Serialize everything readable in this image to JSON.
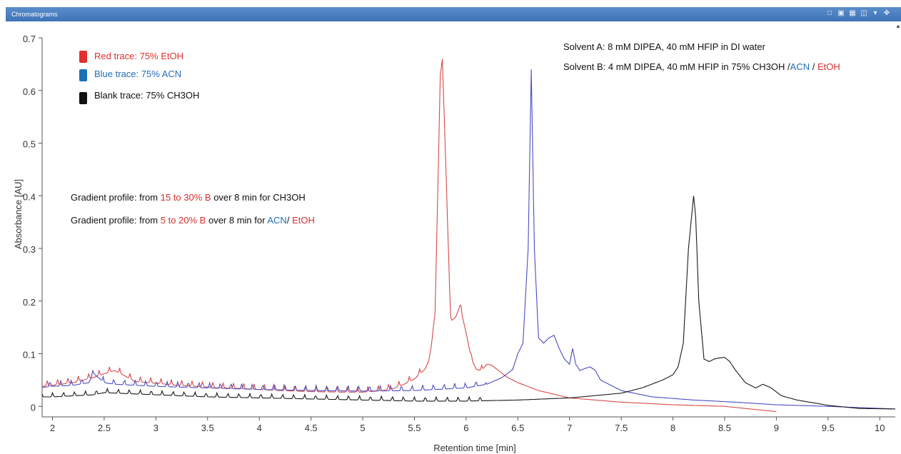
{
  "window": {
    "title": "Chromatograms",
    "toolbar_icons": [
      "copy-icon",
      "export-icon",
      "table-icon",
      "layers-icon",
      "dropdown-icon",
      "move-icon"
    ]
  },
  "colors": {
    "red": "#d84848",
    "blue": "#4c4cc4",
    "black": "#1a1a1a",
    "label_red": "#d83030",
    "label_blue": "#1f6fb5"
  },
  "legend": [
    {
      "label": "Red trace: 75% EtOH",
      "color": "#e03030"
    },
    {
      "label": "Blue trace: 75% ACN",
      "color": "#1f6fb5"
    },
    {
      "label": "Blank trace: 75% CH3OH",
      "color": "#111111"
    }
  ],
  "annotations": {
    "solvent_a": "Solvent A: 8 mM DIPEA, 40 mM HFIP in DI water",
    "solvent_b_prefix": "Solvent B: 4 mM DIPEA, 40 mM HFIP in 75% CH3OH",
    "solvent_b_acn": "ACN",
    "solvent_b_etoh": "EtOH",
    "gradient1_prefix": "Gradient profile: from",
    "gradient1_range": "15 to 30% B",
    "gradient1_suffix": "over 8 min for CH3OH",
    "gradient2_prefix": "Gradient profile: from",
    "gradient2_range": "5 to 20% B",
    "gradient2_suffix": "over 8 min for",
    "gradient2_acn": "ACN",
    "gradient2_etoh": "EtOH",
    "separator": "/"
  },
  "chart_data": {
    "type": "line",
    "xlabel": "Retention time [min]",
    "ylabel": "Absorbance [AU]",
    "xlim": [
      1.9,
      10.15
    ],
    "ylim": [
      -0.02,
      0.7
    ],
    "xticks": [
      2,
      2.5,
      3,
      3.5,
      4,
      4.5,
      5,
      5.5,
      6,
      6.5,
      7,
      7.5,
      8,
      8.5,
      9,
      9.5,
      10
    ],
    "xtick_labels": [
      "2",
      "2.5",
      "3",
      "3.5",
      "4",
      "4.5",
      "5",
      "5.5",
      "6",
      "6.5",
      "7",
      "7.5",
      "8",
      "8.5",
      "9",
      "9.5",
      "10"
    ],
    "yticks": [
      0,
      0.1,
      0.2,
      0.3,
      0.4,
      0.5,
      0.6,
      0.7
    ],
    "ytick_labels": [
      "0",
      "0.1",
      "0.2",
      "0.3",
      "0.4",
      "0.5",
      "0.6",
      "0.7"
    ],
    "series": [
      {
        "name": "Red trace: 75% EtOH",
        "color": "#d84848",
        "x": [
          1.9,
          2.0,
          2.2,
          2.4,
          2.5,
          2.6,
          2.7,
          2.8,
          3.0,
          3.2,
          3.4,
          3.6,
          3.8,
          4.0,
          4.2,
          4.5,
          4.8,
          5.0,
          5.2,
          5.3,
          5.4,
          5.5,
          5.6,
          5.65,
          5.7,
          5.75,
          5.77,
          5.8,
          5.85,
          5.9,
          5.94,
          6.0,
          6.05,
          6.1,
          6.15,
          6.2,
          6.25,
          6.3,
          6.4,
          6.5,
          6.7,
          7.0,
          7.5,
          8.0,
          8.5,
          8.9,
          9.0
        ],
        "y": [
          0.038,
          0.04,
          0.045,
          0.055,
          0.062,
          0.068,
          0.058,
          0.047,
          0.044,
          0.04,
          0.038,
          0.035,
          0.034,
          0.032,
          0.03,
          0.028,
          0.027,
          0.027,
          0.03,
          0.034,
          0.042,
          0.052,
          0.07,
          0.09,
          0.18,
          0.62,
          0.66,
          0.48,
          0.16,
          0.17,
          0.19,
          0.14,
          0.09,
          0.07,
          0.068,
          0.08,
          0.078,
          0.07,
          0.055,
          0.045,
          0.03,
          0.016,
          0.008,
          0.003,
          0.0,
          -0.008,
          -0.01
        ]
      },
      {
        "name": "Blue trace: 75% ACN",
        "color": "#4c4cc4",
        "x": [
          1.9,
          2.0,
          2.2,
          2.35,
          2.4,
          2.5,
          2.6,
          2.8,
          3.0,
          3.5,
          4.0,
          4.5,
          5.0,
          5.5,
          6.0,
          6.2,
          6.35,
          6.45,
          6.5,
          6.55,
          6.6,
          6.63,
          6.66,
          6.7,
          6.75,
          6.8,
          6.85,
          6.9,
          6.95,
          7.0,
          7.03,
          7.06,
          7.1,
          7.15,
          7.2,
          7.25,
          7.3,
          7.5,
          7.8,
          8.2,
          8.6,
          9.0,
          9.5,
          10.15
        ],
        "y": [
          0.036,
          0.038,
          0.04,
          0.045,
          0.062,
          0.045,
          0.042,
          0.04,
          0.038,
          0.035,
          0.032,
          0.03,
          0.029,
          0.03,
          0.035,
          0.042,
          0.055,
          0.07,
          0.1,
          0.12,
          0.3,
          0.64,
          0.3,
          0.13,
          0.12,
          0.13,
          0.135,
          0.11,
          0.09,
          0.08,
          0.11,
          0.08,
          0.068,
          0.072,
          0.075,
          0.068,
          0.05,
          0.03,
          0.018,
          0.012,
          0.008,
          0.003,
          0.0,
          -0.005
        ]
      },
      {
        "name": "Blank trace: 75% CH3OH",
        "color": "#1a1a1a",
        "x": [
          1.9,
          2.0,
          2.2,
          2.4,
          2.5,
          3.0,
          3.5,
          4.0,
          4.5,
          5.0,
          5.5,
          6.0,
          6.5,
          7.0,
          7.5,
          7.7,
          7.9,
          8.0,
          8.05,
          8.1,
          8.15,
          8.2,
          8.22,
          8.25,
          8.3,
          8.35,
          8.4,
          8.45,
          8.5,
          8.55,
          8.6,
          8.7,
          8.8,
          8.87,
          8.95,
          9.05,
          9.2,
          9.5,
          9.8,
          10.15
        ],
        "y": [
          0.018,
          0.018,
          0.02,
          0.022,
          0.026,
          0.022,
          0.018,
          0.016,
          0.014,
          0.012,
          0.01,
          0.01,
          0.012,
          0.016,
          0.025,
          0.035,
          0.05,
          0.06,
          0.075,
          0.12,
          0.3,
          0.4,
          0.36,
          0.2,
          0.09,
          0.085,
          0.09,
          0.092,
          0.093,
          0.085,
          0.07,
          0.045,
          0.035,
          0.042,
          0.035,
          0.02,
          0.012,
          0.002,
          -0.004,
          -0.005
        ]
      }
    ]
  }
}
